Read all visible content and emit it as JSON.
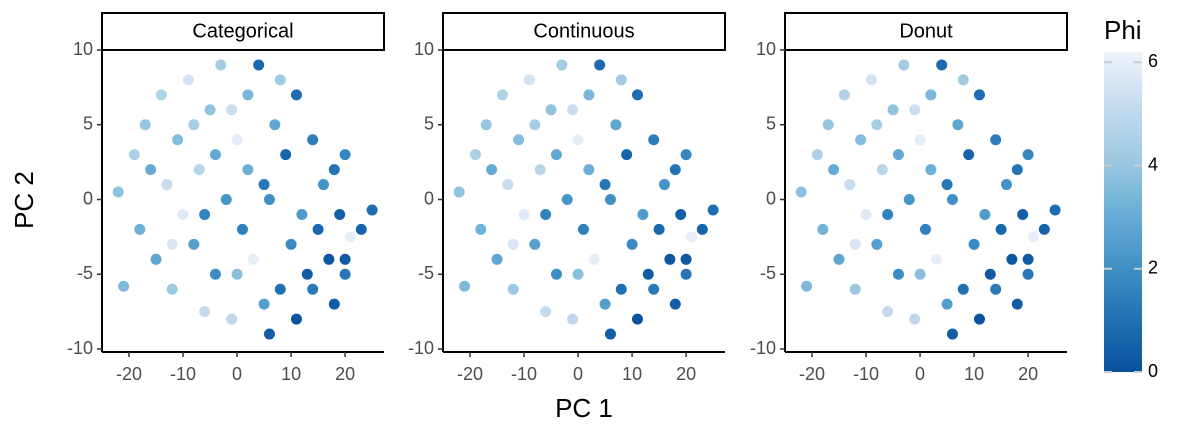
{
  "chart_data": [
    {
      "type": "scatter",
      "title": "Categorical",
      "x": [
        -22,
        -21,
        -19,
        -18,
        -17,
        -15,
        -14,
        -13,
        -12,
        -11,
        -10,
        -9,
        -8,
        -7,
        -6,
        -5,
        -4,
        -3,
        -2,
        -1,
        0,
        1,
        2,
        3,
        4,
        5,
        6,
        7,
        8,
        9,
        10,
        11,
        12,
        13,
        14,
        15,
        16,
        17,
        18,
        19,
        20,
        20,
        21,
        23,
        25,
        -16,
        -12,
        -8,
        -4,
        -1,
        2,
        5,
        8,
        11,
        14,
        -6,
        0,
        6,
        18,
        20
      ],
      "y": [
        0.5,
        -5.8,
        3,
        -2,
        5,
        -4,
        7,
        1,
        -6,
        4,
        -1,
        8,
        -3,
        2,
        -7.5,
        6,
        -5,
        9,
        0,
        -8,
        4,
        -2,
        7,
        -4,
        9,
        1,
        -9,
        5,
        -6,
        3,
        -3,
        7,
        -1,
        -5,
        4,
        -2,
        1,
        -4,
        2,
        -1,
        3,
        -4,
        -2.5,
        -2,
        -0.7,
        2,
        -3,
        5,
        3,
        6,
        2,
        -7,
        8,
        -8,
        -6,
        -1,
        -5,
        0,
        -7,
        -5
      ],
      "phi": [
        3.8,
        3.5,
        4.5,
        3.2,
        4,
        2.8,
        4.6,
        5.2,
        4.1,
        3.6,
        5.8,
        5.5,
        2.6,
        4.8,
        5.1,
        3.9,
        1.9,
        4.3,
        2.2,
        5,
        5.9,
        1.5,
        3.4,
        6,
        0.8,
        1.2,
        0.4,
        2.8,
        1,
        0.6,
        1.8,
        0.9,
        2.4,
        0.3,
        1.4,
        0.7,
        2.1,
        0.2,
        1.1,
        0.5,
        1.7,
        0.3,
        6,
        0.6,
        0.9,
        3,
        5.6,
        4.4,
        2.9,
        5.3,
        3.1,
        2.5,
        4.2,
        0.1,
        1.3,
        1.6,
        3.7,
        2,
        0.4,
        1.2
      ],
      "xlim": [
        -25,
        27.2
      ],
      "ylim": [
        -10.2,
        10
      ],
      "xticks": [
        -20,
        -10,
        0,
        10,
        20
      ],
      "yticks": [
        -10,
        -5,
        0,
        5,
        10
      ]
    },
    {
      "type": "scatter",
      "title": "Continuous",
      "x": [
        -22,
        -21,
        -19,
        -18,
        -17,
        -15,
        -14,
        -13,
        -12,
        -11,
        -10,
        -9,
        -8,
        -7,
        -6,
        -5,
        -4,
        -3,
        -2,
        -1,
        0,
        1,
        2,
        3,
        4,
        5,
        6,
        7,
        8,
        9,
        10,
        11,
        12,
        13,
        14,
        15,
        16,
        17,
        18,
        19,
        20,
        20,
        21,
        23,
        25,
        -16,
        -12,
        -8,
        -4,
        -1,
        2,
        5,
        8,
        11,
        14,
        -6,
        0,
        6,
        18,
        20
      ],
      "y": [
        0.5,
        -5.8,
        3,
        -2,
        5,
        -4,
        7,
        1,
        -6,
        4,
        -1,
        8,
        -3,
        2,
        -7.5,
        6,
        -5,
        9,
        0,
        -8,
        4,
        -2,
        7,
        -4,
        9,
        1,
        -9,
        5,
        -6,
        3,
        -3,
        7,
        -1,
        -5,
        4,
        -2,
        1,
        -4,
        2,
        -1,
        3,
        -4,
        -2.5,
        -2,
        -0.7,
        2,
        -3,
        5,
        3,
        6,
        2,
        -7,
        8,
        -8,
        -6,
        -1,
        -5,
        0,
        -7,
        -5
      ],
      "phi": [
        3.8,
        3.5,
        4.5,
        3.2,
        4,
        2.8,
        4.6,
        5.2,
        4.1,
        3.6,
        5.8,
        5.5,
        2.6,
        4.8,
        5.1,
        3.9,
        1.9,
        4.3,
        2.2,
        5,
        5.9,
        1.5,
        3.4,
        6,
        0.8,
        1.2,
        0.4,
        2.8,
        1,
        0.6,
        1.8,
        0.9,
        2.4,
        0.3,
        1.4,
        0.7,
        2.1,
        0.2,
        1.1,
        0.5,
        1.7,
        0.3,
        6,
        0.6,
        0.9,
        3,
        5.6,
        4.4,
        2.9,
        5.3,
        3.1,
        2.5,
        4.2,
        0.1,
        1.3,
        1.6,
        3.7,
        2,
        0.4,
        1.2
      ],
      "xlim": [
        -25,
        27.2
      ],
      "ylim": [
        -10.2,
        10
      ],
      "xticks": [
        -20,
        -10,
        0,
        10,
        20
      ],
      "yticks": [
        -10,
        -5,
        0,
        5,
        10
      ]
    },
    {
      "type": "scatter",
      "title": "Donut",
      "x": [
        -22,
        -21,
        -19,
        -18,
        -17,
        -15,
        -14,
        -13,
        -12,
        -11,
        -10,
        -9,
        -8,
        -7,
        -6,
        -5,
        -4,
        -3,
        -2,
        -1,
        0,
        1,
        2,
        3,
        4,
        5,
        6,
        7,
        8,
        9,
        10,
        11,
        12,
        13,
        14,
        15,
        16,
        17,
        18,
        19,
        20,
        20,
        21,
        23,
        25,
        -16,
        -12,
        -8,
        -4,
        -1,
        2,
        5,
        8,
        11,
        14,
        -6,
        0,
        6,
        18,
        20
      ],
      "y": [
        0.5,
        -5.8,
        3,
        -2,
        5,
        -4,
        7,
        1,
        -6,
        4,
        -1,
        8,
        -3,
        2,
        -7.5,
        6,
        -5,
        9,
        0,
        -8,
        4,
        -2,
        7,
        -4,
        9,
        1,
        -9,
        5,
        -6,
        3,
        -3,
        7,
        -1,
        -5,
        4,
        -2,
        1,
        -4,
        2,
        -1,
        3,
        -4,
        -2.5,
        -2,
        -0.7,
        2,
        -3,
        5,
        3,
        6,
        2,
        -7,
        8,
        -8,
        -6,
        -1,
        -5,
        0,
        -7,
        -5
      ],
      "phi": [
        3.8,
        3.5,
        4.5,
        3.2,
        4,
        2.8,
        4.6,
        5.2,
        4.1,
        3.6,
        5.8,
        5.5,
        2.6,
        4.8,
        5.1,
        3.9,
        1.9,
        4.3,
        2.2,
        5,
        5.9,
        1.5,
        3.4,
        6,
        0.8,
        1.2,
        0.4,
        2.8,
        1,
        0.6,
        1.8,
        0.9,
        2.4,
        0.3,
        1.4,
        0.7,
        2.1,
        0.2,
        1.1,
        0.5,
        1.7,
        0.3,
        6,
        0.6,
        0.9,
        3,
        5.6,
        4.4,
        2.9,
        5.3,
        3.1,
        2.5,
        4.2,
        0.1,
        1.3,
        1.6,
        3.7,
        2,
        0.4,
        1.2
      ],
      "xlim": [
        -25,
        27.2
      ],
      "ylim": [
        -10.2,
        10
      ],
      "xticks": [
        -20,
        -10,
        0,
        10,
        20
      ],
      "yticks": [
        -10,
        -5,
        0,
        5,
        10
      ]
    }
  ],
  "shared": {
    "x_label": "PC 1",
    "y_label": "PC 2",
    "colorbar": {
      "title": "Phi",
      "lim": [
        0,
        6.2
      ],
      "ticks": [
        0,
        2,
        4,
        6
      ],
      "colors": [
        "#08519c",
        "#2171b5",
        "#4292c6",
        "#6baed6",
        "#9ecae1",
        "#c6dbef",
        "#eef4fb"
      ]
    }
  }
}
